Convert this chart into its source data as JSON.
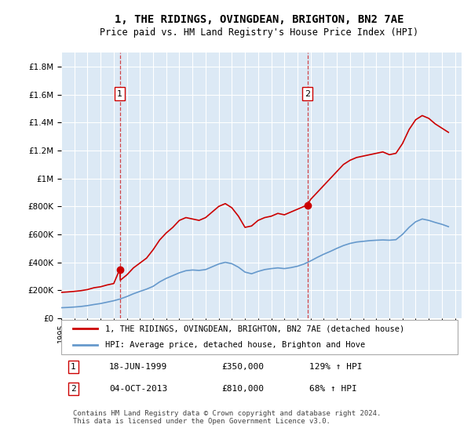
{
  "title": "1, THE RIDINGS, OVINGDEAN, BRIGHTON, BN2 7AE",
  "subtitle": "Price paid vs. HM Land Registry's House Price Index (HPI)",
  "ylabel_ticks": [
    "£0",
    "£200K",
    "£400K",
    "£600K",
    "£800K",
    "£1M",
    "£1.2M",
    "£1.4M",
    "£1.6M",
    "£1.8M"
  ],
  "ytick_vals": [
    0,
    200000,
    400000,
    600000,
    800000,
    1000000,
    1200000,
    1400000,
    1600000,
    1800000
  ],
  "ylim": [
    0,
    1900000
  ],
  "xlim_start": 1995.0,
  "xlim_end": 2025.5,
  "background_color": "#dce9f5",
  "plot_bg": "#dce9f5",
  "marker1_x": 1999.46,
  "marker1_y": 350000,
  "marker2_x": 2013.75,
  "marker2_y": 810000,
  "vline1_x": 1999.46,
  "vline2_x": 2013.75,
  "legend_label_red": "1, THE RIDINGS, OVINGDEAN, BRIGHTON, BN2 7AE (detached house)",
  "legend_label_blue": "HPI: Average price, detached house, Brighton and Hove",
  "table_rows": [
    {
      "num": "1",
      "date": "18-JUN-1999",
      "price": "£350,000",
      "hpi": "129% ↑ HPI"
    },
    {
      "num": "2",
      "date": "04-OCT-2013",
      "price": "£810,000",
      "hpi": "68% ↑ HPI"
    }
  ],
  "footer": "Contains HM Land Registry data © Crown copyright and database right 2024.\nThis data is licensed under the Open Government Licence v3.0.",
  "red_color": "#cc0000",
  "blue_color": "#6699cc",
  "red_hpi_data": {
    "x": [
      1995.0,
      1995.5,
      1996.0,
      1996.5,
      1997.0,
      1997.5,
      1998.0,
      1998.5,
      1999.0,
      1999.46,
      1999.5,
      2000.0,
      2000.5,
      2001.0,
      2001.5,
      2002.0,
      2002.5,
      2003.0,
      2003.5,
      2004.0,
      2004.5,
      2005.0,
      2005.5,
      2006.0,
      2006.5,
      2007.0,
      2007.5,
      2008.0,
      2008.5,
      2009.0,
      2009.5,
      2010.0,
      2010.5,
      2011.0,
      2011.5,
      2012.0,
      2012.5,
      2013.0,
      2013.5,
      2013.75,
      2014.0,
      2014.5,
      2015.0,
      2015.5,
      2016.0,
      2016.5,
      2017.0,
      2017.5,
      2018.0,
      2018.5,
      2019.0,
      2019.5,
      2020.0,
      2020.5,
      2021.0,
      2021.5,
      2022.0,
      2022.5,
      2023.0,
      2023.5,
      2024.0,
      2024.5
    ],
    "y": [
      185000,
      188000,
      192000,
      197000,
      205000,
      218000,
      225000,
      238000,
      248000,
      350000,
      272000,
      310000,
      360000,
      395000,
      430000,
      490000,
      560000,
      610000,
      650000,
      700000,
      720000,
      710000,
      700000,
      720000,
      760000,
      800000,
      820000,
      790000,
      730000,
      650000,
      660000,
      700000,
      720000,
      730000,
      750000,
      740000,
      760000,
      780000,
      800000,
      810000,
      850000,
      900000,
      950000,
      1000000,
      1050000,
      1100000,
      1130000,
      1150000,
      1160000,
      1170000,
      1180000,
      1190000,
      1170000,
      1180000,
      1250000,
      1350000,
      1420000,
      1450000,
      1430000,
      1390000,
      1360000,
      1330000
    ]
  },
  "blue_hpi_data": {
    "x": [
      1995.0,
      1995.5,
      1996.0,
      1996.5,
      1997.0,
      1997.5,
      1998.0,
      1998.5,
      1999.0,
      1999.5,
      2000.0,
      2000.5,
      2001.0,
      2001.5,
      2002.0,
      2002.5,
      2003.0,
      2003.5,
      2004.0,
      2004.5,
      2005.0,
      2005.5,
      2006.0,
      2006.5,
      2007.0,
      2007.5,
      2008.0,
      2008.5,
      2009.0,
      2009.5,
      2010.0,
      2010.5,
      2011.0,
      2011.5,
      2012.0,
      2012.5,
      2013.0,
      2013.5,
      2014.0,
      2014.5,
      2015.0,
      2015.5,
      2016.0,
      2016.5,
      2017.0,
      2017.5,
      2018.0,
      2018.5,
      2019.0,
      2019.5,
      2020.0,
      2020.5,
      2021.0,
      2021.5,
      2022.0,
      2022.5,
      2023.0,
      2023.5,
      2024.0,
      2024.5
    ],
    "y": [
      75000,
      77000,
      80000,
      84000,
      90000,
      98000,
      105000,
      115000,
      125000,
      138000,
      155000,
      175000,
      192000,
      208000,
      228000,
      260000,
      285000,
      305000,
      325000,
      340000,
      345000,
      342000,
      348000,
      368000,
      388000,
      400000,
      390000,
      365000,
      330000,
      318000,
      335000,
      348000,
      355000,
      360000,
      355000,
      362000,
      372000,
      388000,
      410000,
      435000,
      458000,
      478000,
      500000,
      520000,
      535000,
      545000,
      550000,
      555000,
      558000,
      560000,
      558000,
      562000,
      600000,
      650000,
      690000,
      710000,
      700000,
      685000,
      672000,
      655000
    ]
  }
}
